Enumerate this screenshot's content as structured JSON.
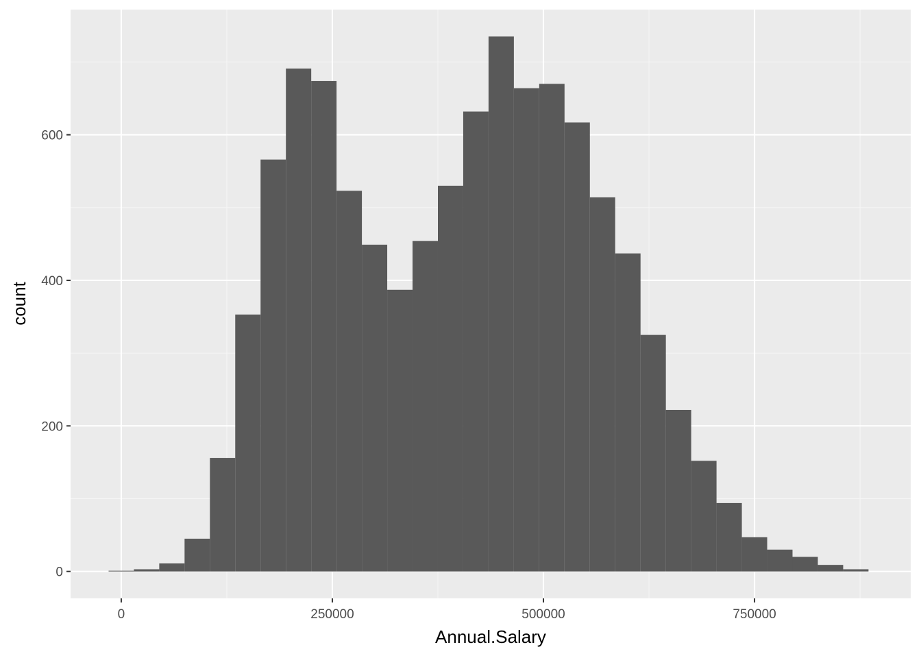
{
  "chart_data": {
    "type": "bar",
    "title": "",
    "xlabel": "Annual.Salary",
    "ylabel": "count",
    "xlim": [
      -60000,
      935000
    ],
    "ylim": [
      -37,
      772
    ],
    "x_ticks": [
      0,
      250000,
      500000,
      750000
    ],
    "x_tick_labels": [
      "0",
      "250000",
      "500000",
      "750000"
    ],
    "x_minor_ticks": [
      125000,
      375000,
      625000,
      875000
    ],
    "y_ticks": [
      0,
      200,
      400,
      600
    ],
    "y_tick_labels": [
      "0",
      "200",
      "400",
      "600"
    ],
    "y_minor_ticks": [
      100,
      300,
      500,
      700
    ],
    "grid": true,
    "bin_width": 30000,
    "bins": [
      {
        "x0": -15000,
        "x1": 15000,
        "count": 1
      },
      {
        "x0": 15000,
        "x1": 45000,
        "count": 3
      },
      {
        "x0": 45000,
        "x1": 75000,
        "count": 11
      },
      {
        "x0": 75000,
        "x1": 105000,
        "count": 45
      },
      {
        "x0": 105000,
        "x1": 135000,
        "count": 156
      },
      {
        "x0": 135000,
        "x1": 165000,
        "count": 353
      },
      {
        "x0": 165000,
        "x1": 195000,
        "count": 566
      },
      {
        "x0": 195000,
        "x1": 225000,
        "count": 691
      },
      {
        "x0": 225000,
        "x1": 255000,
        "count": 674
      },
      {
        "x0": 255000,
        "x1": 285000,
        "count": 523
      },
      {
        "x0": 285000,
        "x1": 315000,
        "count": 449
      },
      {
        "x0": 315000,
        "x1": 345000,
        "count": 387
      },
      {
        "x0": 345000,
        "x1": 375000,
        "count": 454
      },
      {
        "x0": 375000,
        "x1": 405000,
        "count": 530
      },
      {
        "x0": 405000,
        "x1": 435000,
        "count": 632
      },
      {
        "x0": 435000,
        "x1": 465000,
        "count": 735
      },
      {
        "x0": 465000,
        "x1": 495000,
        "count": 664
      },
      {
        "x0": 495000,
        "x1": 525000,
        "count": 670
      },
      {
        "x0": 525000,
        "x1": 555000,
        "count": 617
      },
      {
        "x0": 555000,
        "x1": 585000,
        "count": 514
      },
      {
        "x0": 585000,
        "x1": 615000,
        "count": 437
      },
      {
        "x0": 615000,
        "x1": 645000,
        "count": 325
      },
      {
        "x0": 645000,
        "x1": 675000,
        "count": 222
      },
      {
        "x0": 675000,
        "x1": 705000,
        "count": 152
      },
      {
        "x0": 705000,
        "x1": 735000,
        "count": 94
      },
      {
        "x0": 735000,
        "x1": 765000,
        "count": 47
      },
      {
        "x0": 765000,
        "x1": 795000,
        "count": 30
      },
      {
        "x0": 795000,
        "x1": 825000,
        "count": 20
      },
      {
        "x0": 825000,
        "x1": 855000,
        "count": 9
      },
      {
        "x0": 855000,
        "x1": 885000,
        "count": 3
      }
    ],
    "colors": {
      "panel_background": "#ebebeb",
      "grid_major": "#ffffff",
      "grid_minor": "#f5f5f5",
      "bar_fill": "#595959",
      "tick_label": "#4d4d4d",
      "tick_mark": "#333333",
      "axis_title": "#000000"
    }
  }
}
